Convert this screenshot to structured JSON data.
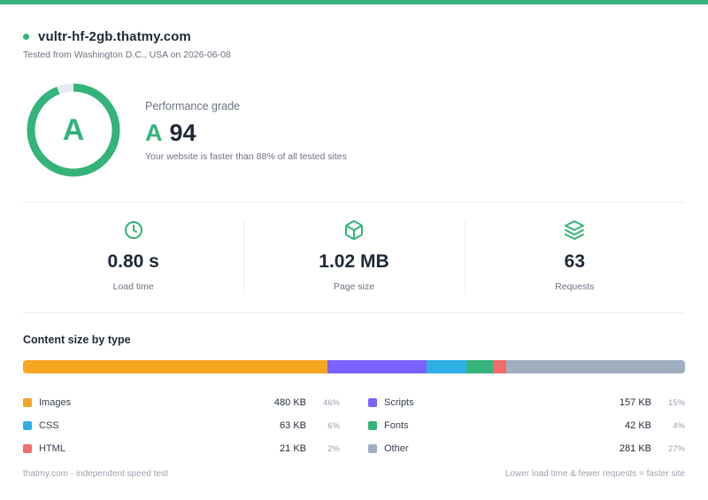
{
  "header": {
    "domain": "vultr-hf-2gb.thatmy.com",
    "tested_from": "Tested from Washington D.C., USA on 2026-06-08"
  },
  "grade": {
    "letter": "A",
    "label": "Performance grade",
    "score": "94",
    "score_fraction": 0.94,
    "note": "Your website is faster than 88% of all tested sites",
    "accent_color": "#34b37a"
  },
  "stats": [
    {
      "icon": "clock-icon",
      "value": "0.80 s",
      "label": "Load time"
    },
    {
      "icon": "box-icon",
      "value": "1.02 MB",
      "label": "Page size"
    },
    {
      "icon": "layers-icon",
      "value": "63",
      "label": "Requests"
    }
  ],
  "content": {
    "title": "Content size by type",
    "types": [
      {
        "name": "Images",
        "size": "480 KB",
        "pct": "46%",
        "share": 46,
        "color": "#f5a623"
      },
      {
        "name": "Scripts",
        "size": "157 KB",
        "pct": "15%",
        "share": 15,
        "color": "#7b61ff"
      },
      {
        "name": "CSS",
        "size": "63 KB",
        "pct": "6%",
        "share": 6,
        "color": "#2cb0e3"
      },
      {
        "name": "Fonts",
        "size": "42 KB",
        "pct": "4%",
        "share": 4,
        "color": "#34b37a"
      },
      {
        "name": "HTML",
        "size": "21 KB",
        "pct": "2%",
        "share": 2,
        "color": "#f36b6b"
      },
      {
        "name": "Other",
        "size": "281 KB",
        "pct": "27%",
        "share": 27,
        "color": "#a0aec0"
      }
    ]
  },
  "footer": {
    "left": "thatmy.com · independent speed test",
    "right": "Lower load time & fewer requests = faster site"
  }
}
